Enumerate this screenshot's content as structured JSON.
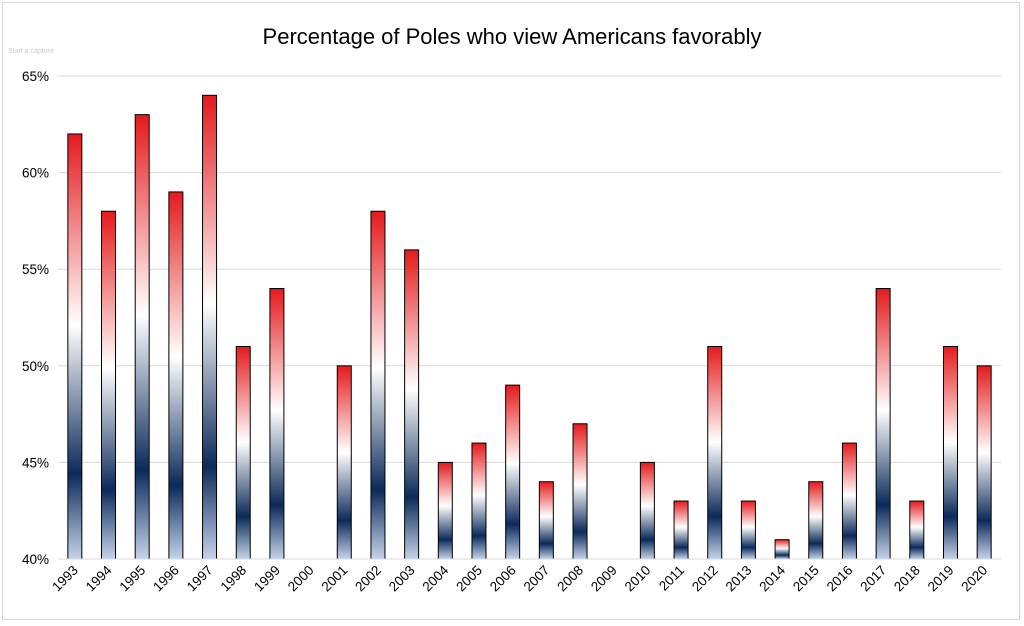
{
  "capture_hint": "Start a capture",
  "chart_data": {
    "type": "bar",
    "title": "Percentage of Poles who view Americans favorably",
    "xlabel": "",
    "ylabel": "",
    "ylim": [
      40,
      65
    ],
    "yticks": [
      40,
      45,
      50,
      55,
      60,
      65
    ],
    "ytick_labels": [
      "40%",
      "45%",
      "50%",
      "55%",
      "60%",
      "65%"
    ],
    "grid": true,
    "categories": [
      "1993",
      "1994",
      "1995",
      "1996",
      "1997",
      "1998",
      "1999",
      "2000",
      "2001",
      "2002",
      "2003",
      "2004",
      "2005",
      "2006",
      "2007",
      "2008",
      "2009",
      "2010",
      "2011",
      "2012",
      "2013",
      "2014",
      "2015",
      "2016",
      "2017",
      "2018",
      "2019",
      "2020"
    ],
    "values": [
      62,
      58,
      63,
      59,
      64,
      51,
      54,
      null,
      50,
      58,
      56,
      45,
      46,
      49,
      44,
      47,
      null,
      45,
      43,
      51,
      43,
      41,
      44,
      46,
      54,
      43,
      51,
      50
    ],
    "bar_gradient": [
      "#e41a1c",
      "#ffffff",
      "#0b2a5a",
      "#c5d3ea"
    ]
  }
}
